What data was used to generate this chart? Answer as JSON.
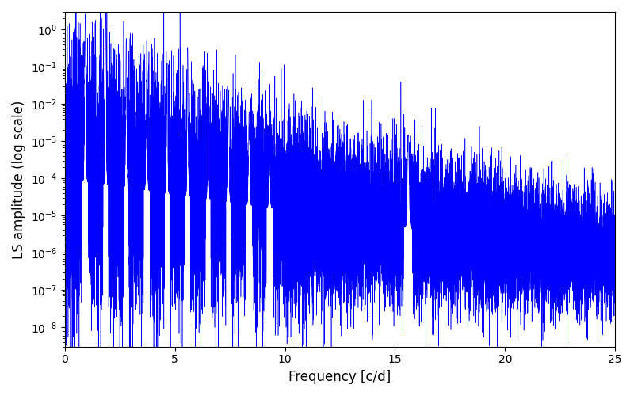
{
  "title": "",
  "xlabel": "Frequency [c/d]",
  "ylabel": "LS amplitude (log scale)",
  "line_color": "#0000ff",
  "xlim": [
    0,
    25
  ],
  "ylim_bottom": 3e-09,
  "ylim_top": 3.0,
  "xmin": 0.0,
  "xmax": 25.0,
  "n_points": 20000,
  "seed": 12345,
  "background_color": "#ffffff",
  "figsize": [
    8.0,
    5.0
  ],
  "dpi": 100
}
